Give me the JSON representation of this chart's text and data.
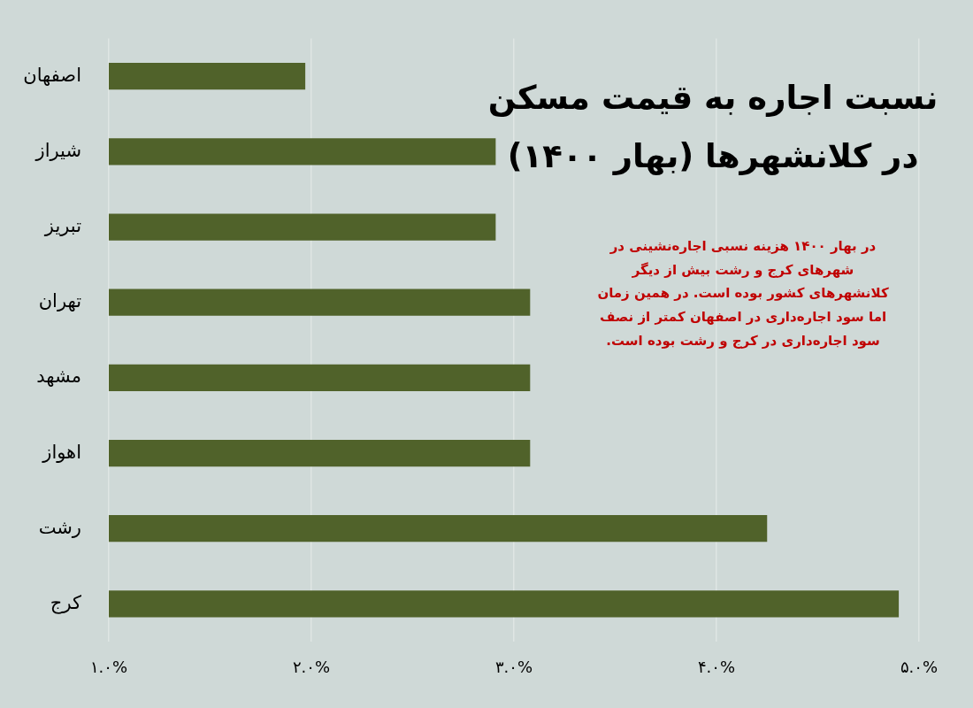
{
  "chart_data": {
    "type": "bar",
    "orientation": "horizontal",
    "title": "نسبت اجاره به قیمت مسکن\nدر کلانشهرها (بهار ۱۴۰۰)",
    "annotations": [
      "در بهار ۱۴۰۰ هزینه نسبی اجاره‌نشینی در\nشهرهای کرج و رشت بیش از دیگر\nکلانشهرهای کشور بوده است. در همین زمان\nاما سود اجاره‌داری در اصفهان کمتر از نصف\nسود اجاره‌داری در کرج و رشت بوده است."
    ],
    "categories": [
      "اصفهان",
      "شیراز",
      "تبریز",
      "تهران",
      "مشهد",
      "اهواز",
      "رشت",
      "کرج"
    ],
    "values": [
      1.97,
      2.91,
      2.91,
      3.08,
      3.08,
      3.08,
      4.25,
      4.9
    ],
    "color": "#50622a",
    "xlim": [
      1,
      5
    ],
    "xticks": [
      {
        "value": 1,
        "label": "۱.۰%"
      },
      {
        "value": 2,
        "label": "۲.۰%"
      },
      {
        "value": 3,
        "label": "۳.۰%"
      },
      {
        "value": 4,
        "label": "۴.۰%"
      },
      {
        "value": 5,
        "label": "۵.۰%"
      }
    ],
    "grid": "x"
  }
}
